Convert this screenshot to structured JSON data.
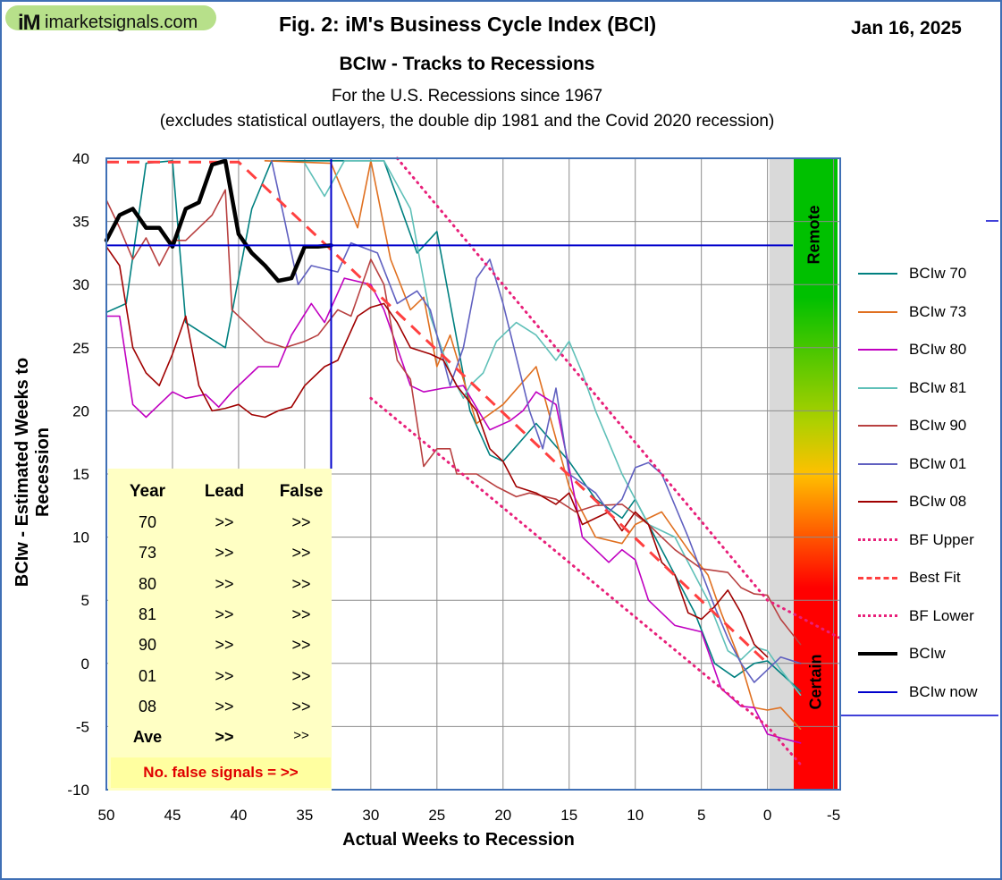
{
  "header": {
    "logo_mark": "iM",
    "logo_text": "imarketsignals.com",
    "fig_title": "Fig. 2:   iM's Business Cycle Index (BCI)",
    "date": "Jan 16, 2025",
    "subtitle": "BCIw - Tracks to Recessions",
    "note_line1": "For the U.S. Recessions since 1967",
    "note_line2": "(excludes statistical outlayers, the  double dip 1981 and the Covid 2020 recession)"
  },
  "bands": {
    "remote_label": "Remote",
    "certain_label": "Certain",
    "gradient_top": "#00c000",
    "gradient_mid": "#ffc000",
    "gradient_bottom": "#ff0000",
    "shade_color": "#d9d9d9"
  },
  "table": {
    "headers": [
      "Year",
      "Lead",
      "False"
    ],
    "rows": [
      [
        "70",
        ">>",
        ">>"
      ],
      [
        "73",
        ">>",
        ">>"
      ],
      [
        "80",
        ">>",
        ">>"
      ],
      [
        "81",
        ">>",
        ">>"
      ],
      [
        "90",
        ">>",
        ">>"
      ],
      [
        "01",
        ">>",
        ">>"
      ],
      [
        "08",
        ">>",
        ">>"
      ],
      [
        "Ave",
        ">>",
        ">>"
      ]
    ],
    "footer": "No. false signals = >>"
  },
  "chart_data": {
    "type": "line",
    "title": "BCIw - Tracks to Recessions",
    "xlabel": "Actual  Weeks  to  Recession",
    "ylabel": "BCIw - Estimated Weeks to Recession",
    "xlim": [
      50,
      -5.5
    ],
    "ylim": [
      -10,
      40
    ],
    "x_ticks": [
      "50",
      "45",
      "40",
      "35",
      "30",
      "25",
      "20",
      "15",
      "10",
      "5",
      "0",
      "-5"
    ],
    "y_ticks": [
      "40",
      "35",
      "30",
      "25",
      "20",
      "15",
      "10",
      "5",
      "0",
      "-5",
      "-10"
    ],
    "grid": true,
    "legend_position": "right",
    "current_marker": {
      "x": 33,
      "y": 33.1
    },
    "series": [
      {
        "name": "BCIw 70",
        "color": "#008080",
        "width": 1.6,
        "dash": "solid",
        "points": [
          [
            50,
            27.8
          ],
          [
            48.5,
            28.5
          ],
          [
            47,
            39.6
          ],
          [
            45,
            39.8
          ],
          [
            44,
            27
          ],
          [
            42.5,
            26
          ],
          [
            41,
            25
          ],
          [
            39,
            36
          ],
          [
            37.5,
            39.8
          ],
          [
            29,
            39.8
          ],
          [
            26.5,
            32.5
          ],
          [
            25,
            34.2
          ],
          [
            22.5,
            20
          ],
          [
            21,
            16.5
          ],
          [
            20,
            16
          ],
          [
            17.5,
            19
          ],
          [
            15,
            16
          ],
          [
            13,
            13
          ],
          [
            11,
            11.5
          ],
          [
            10,
            13
          ],
          [
            8,
            9
          ],
          [
            5.5,
            4
          ],
          [
            4,
            0
          ],
          [
            2.5,
            -1.1
          ],
          [
            1,
            0
          ],
          [
            0,
            0.2
          ],
          [
            -2.5,
            -2.2
          ]
        ]
      },
      {
        "name": "BCIw 73",
        "color": "#e07020",
        "width": 1.6,
        "dash": "solid",
        "points": [
          [
            38,
            39.8
          ],
          [
            33,
            39.6
          ],
          [
            31,
            34.5
          ],
          [
            30,
            39.8
          ],
          [
            28.5,
            32
          ],
          [
            27,
            28
          ],
          [
            26,
            29
          ],
          [
            25,
            23.5
          ],
          [
            24,
            26
          ],
          [
            22,
            19
          ],
          [
            20,
            20.5
          ],
          [
            17.5,
            23.5
          ],
          [
            15,
            14
          ],
          [
            13,
            10
          ],
          [
            11,
            9.5
          ],
          [
            10,
            11
          ],
          [
            8,
            12
          ],
          [
            6,
            9
          ],
          [
            4.5,
            7
          ],
          [
            3.5,
            4
          ],
          [
            2,
            0
          ],
          [
            1,
            -3.5
          ],
          [
            0,
            -3.7
          ],
          [
            -1,
            -3.5
          ],
          [
            -2.5,
            -5.2
          ]
        ]
      },
      {
        "name": "BCIw 80",
        "color": "#c000c0",
        "width": 1.6,
        "dash": "solid",
        "points": [
          [
            50,
            27.5
          ],
          [
            49,
            27.5
          ],
          [
            48,
            20.5
          ],
          [
            47,
            19.5
          ],
          [
            46,
            20.5
          ],
          [
            45,
            21.5
          ],
          [
            44,
            21
          ],
          [
            42.5,
            21.3
          ],
          [
            41.5,
            20.3
          ],
          [
            40.5,
            21.5
          ],
          [
            38.5,
            23.5
          ],
          [
            37,
            23.5
          ],
          [
            36,
            26
          ],
          [
            34.5,
            28.5
          ],
          [
            33.5,
            27
          ],
          [
            32,
            30.5
          ],
          [
            30,
            30
          ],
          [
            29,
            28
          ],
          [
            27,
            22
          ],
          [
            26,
            21.5
          ],
          [
            24.5,
            21.8
          ],
          [
            23,
            22
          ],
          [
            21,
            18.5
          ],
          [
            19.5,
            19.2
          ],
          [
            18.5,
            20
          ],
          [
            17.5,
            21.5
          ],
          [
            16,
            20.5
          ],
          [
            15,
            15.5
          ],
          [
            14,
            10
          ],
          [
            12,
            8
          ],
          [
            11,
            9
          ],
          [
            10,
            8.2
          ],
          [
            9,
            5
          ],
          [
            7,
            3
          ],
          [
            5,
            2.5
          ],
          [
            3.5,
            -2
          ],
          [
            2,
            -3.4
          ],
          [
            1,
            -3.5
          ],
          [
            0,
            -5.6
          ],
          [
            -1,
            -5.9
          ],
          [
            -2.5,
            -6.3
          ]
        ]
      },
      {
        "name": "BCIw 81",
        "color": "#5fc0b8",
        "width": 1.6,
        "dash": "solid",
        "points": [
          [
            35,
            39.6
          ],
          [
            33.5,
            37
          ],
          [
            32,
            39.8
          ],
          [
            29,
            39.8
          ],
          [
            27,
            36
          ],
          [
            25.5,
            27.5
          ],
          [
            24,
            23
          ],
          [
            23,
            21
          ],
          [
            22.5,
            22
          ],
          [
            21.5,
            23
          ],
          [
            20.5,
            25.5
          ],
          [
            19,
            27
          ],
          [
            17.5,
            26
          ],
          [
            16,
            24
          ],
          [
            15,
            25.5
          ],
          [
            14,
            23
          ],
          [
            13,
            20
          ],
          [
            11,
            15
          ],
          [
            10.5,
            14
          ],
          [
            9,
            11
          ],
          [
            7,
            10
          ],
          [
            5.5,
            7
          ],
          [
            4.5,
            5
          ],
          [
            3,
            1
          ],
          [
            2,
            0.3
          ],
          [
            1,
            1.3
          ],
          [
            0,
            1
          ],
          [
            -1,
            -0.5
          ],
          [
            -2.5,
            -2.5
          ]
        ]
      },
      {
        "name": "BCIw 90",
        "color": "#b84040",
        "width": 1.6,
        "dash": "solid",
        "points": [
          [
            50,
            36.7
          ],
          [
            49,
            34.5
          ],
          [
            48,
            32
          ],
          [
            47,
            33.7
          ],
          [
            46,
            31.5
          ],
          [
            45,
            33.5
          ],
          [
            44,
            33.5
          ],
          [
            42,
            35.5
          ],
          [
            41,
            37.5
          ],
          [
            40.5,
            28
          ],
          [
            39.5,
            27
          ],
          [
            38,
            25.5
          ],
          [
            36.5,
            25
          ],
          [
            35,
            25.5
          ],
          [
            34,
            26
          ],
          [
            32.5,
            28
          ],
          [
            31.5,
            27.5
          ],
          [
            30,
            32
          ],
          [
            29,
            30
          ],
          [
            28,
            24
          ],
          [
            27,
            22.5
          ],
          [
            26,
            15.6
          ],
          [
            25,
            17
          ],
          [
            24,
            17
          ],
          [
            23.5,
            15
          ],
          [
            22,
            15
          ],
          [
            20.5,
            14
          ],
          [
            19,
            13.2
          ],
          [
            18,
            13.5
          ],
          [
            16,
            13
          ],
          [
            14.5,
            12
          ],
          [
            13,
            12.5
          ],
          [
            11,
            12.6
          ],
          [
            9,
            11
          ],
          [
            7,
            9
          ],
          [
            5,
            7.5
          ],
          [
            3,
            7.2
          ],
          [
            2,
            6
          ],
          [
            1,
            5.5
          ],
          [
            0,
            5.4
          ],
          [
            -1,
            3.5
          ],
          [
            -2.5,
            1.5
          ]
        ]
      },
      {
        "name": "BCIw 01",
        "color": "#6060c0",
        "width": 1.6,
        "dash": "solid",
        "points": [
          [
            37.5,
            39.8
          ],
          [
            36.5,
            35
          ],
          [
            35.5,
            30
          ],
          [
            34.5,
            31.5
          ],
          [
            32.5,
            31
          ],
          [
            31.5,
            33.3
          ],
          [
            29.5,
            32.5
          ],
          [
            28,
            28.5
          ],
          [
            26.5,
            29.5
          ],
          [
            25.5,
            28
          ],
          [
            24,
            22
          ],
          [
            23,
            25
          ],
          [
            22,
            30.5
          ],
          [
            21,
            32
          ],
          [
            20,
            28.5
          ],
          [
            18,
            20
          ],
          [
            17,
            17
          ],
          [
            16,
            21.8
          ],
          [
            15,
            15
          ],
          [
            13,
            13.5
          ],
          [
            12,
            12
          ],
          [
            11,
            13
          ],
          [
            10,
            15.5
          ],
          [
            9,
            15.9
          ],
          [
            8,
            15
          ],
          [
            6,
            10
          ],
          [
            4,
            4.5
          ],
          [
            3,
            2
          ],
          [
            2,
            0
          ],
          [
            1,
            -1.5
          ],
          [
            0,
            -0.5
          ],
          [
            -1,
            0.5
          ],
          [
            -2.5,
            0
          ]
        ]
      },
      {
        "name": "BCIw 08",
        "color": "#a00000",
        "width": 1.6,
        "dash": "solid",
        "points": [
          [
            50,
            33
          ],
          [
            49,
            31.5
          ],
          [
            48,
            25
          ],
          [
            47,
            23
          ],
          [
            46,
            22
          ],
          [
            45,
            24.5
          ],
          [
            44,
            27.5
          ],
          [
            43,
            22
          ],
          [
            42,
            20
          ],
          [
            41,
            20.2
          ],
          [
            40,
            20.5
          ],
          [
            39,
            19.7
          ],
          [
            38,
            19.5
          ],
          [
            37,
            20
          ],
          [
            36,
            20.3
          ],
          [
            35,
            22
          ],
          [
            33.5,
            23.5
          ],
          [
            32.5,
            24
          ],
          [
            31,
            27.5
          ],
          [
            30,
            28.2
          ],
          [
            29,
            28.5
          ],
          [
            28,
            27
          ],
          [
            27,
            25
          ],
          [
            25.5,
            24.5
          ],
          [
            24.5,
            24
          ],
          [
            23.5,
            22
          ],
          [
            22,
            20
          ],
          [
            21,
            17
          ],
          [
            20,
            16
          ],
          [
            19,
            14
          ],
          [
            17.5,
            13.5
          ],
          [
            16,
            12.6
          ],
          [
            15,
            13.5
          ],
          [
            14,
            11
          ],
          [
            13,
            11.5
          ],
          [
            12,
            12
          ],
          [
            11,
            10.5
          ],
          [
            10,
            12
          ],
          [
            9,
            11
          ],
          [
            8,
            8
          ],
          [
            7,
            7
          ],
          [
            6,
            4
          ],
          [
            5,
            3.5
          ],
          [
            4,
            4.5
          ],
          [
            3,
            5.8
          ],
          [
            2,
            4
          ],
          [
            1,
            1.5
          ],
          [
            0,
            0.5
          ]
        ]
      },
      {
        "name": "BF Upper",
        "color": "#e8207a",
        "width": 3,
        "dash": "dot",
        "points": [
          [
            28,
            40
          ],
          [
            0,
            5
          ],
          [
            -5.5,
            2
          ]
        ]
      },
      {
        "name": "Best Fit",
        "color": "#ff4040",
        "width": 3,
        "dash": "dash",
        "points": [
          [
            50,
            39.7
          ],
          [
            40,
            39.7
          ],
          [
            0,
            0
          ]
        ]
      },
      {
        "name": "BF Lower",
        "color": "#e8207a",
        "width": 3,
        "dash": "dot",
        "points": [
          [
            30,
            21
          ],
          [
            0,
            -5
          ],
          [
            -2.5,
            -8
          ]
        ]
      },
      {
        "name": "BCIw",
        "color": "#000000",
        "width": 4.5,
        "dash": "solid",
        "points": [
          [
            50,
            33.5
          ],
          [
            49,
            35.5
          ],
          [
            48,
            36
          ],
          [
            47,
            34.5
          ],
          [
            46,
            34.5
          ],
          [
            45,
            33
          ],
          [
            44,
            36
          ],
          [
            43,
            36.5
          ],
          [
            42,
            39.5
          ],
          [
            41,
            39.8
          ],
          [
            40,
            34
          ],
          [
            39,
            32.5
          ],
          [
            38,
            31.5
          ],
          [
            37,
            30.3
          ],
          [
            36,
            30.5
          ],
          [
            35,
            33
          ],
          [
            34,
            33
          ],
          [
            33,
            33.1
          ]
        ]
      },
      {
        "name": "BCIw now",
        "color": "#0000cc",
        "width": 2,
        "dash": "solid",
        "points": []
      }
    ]
  }
}
